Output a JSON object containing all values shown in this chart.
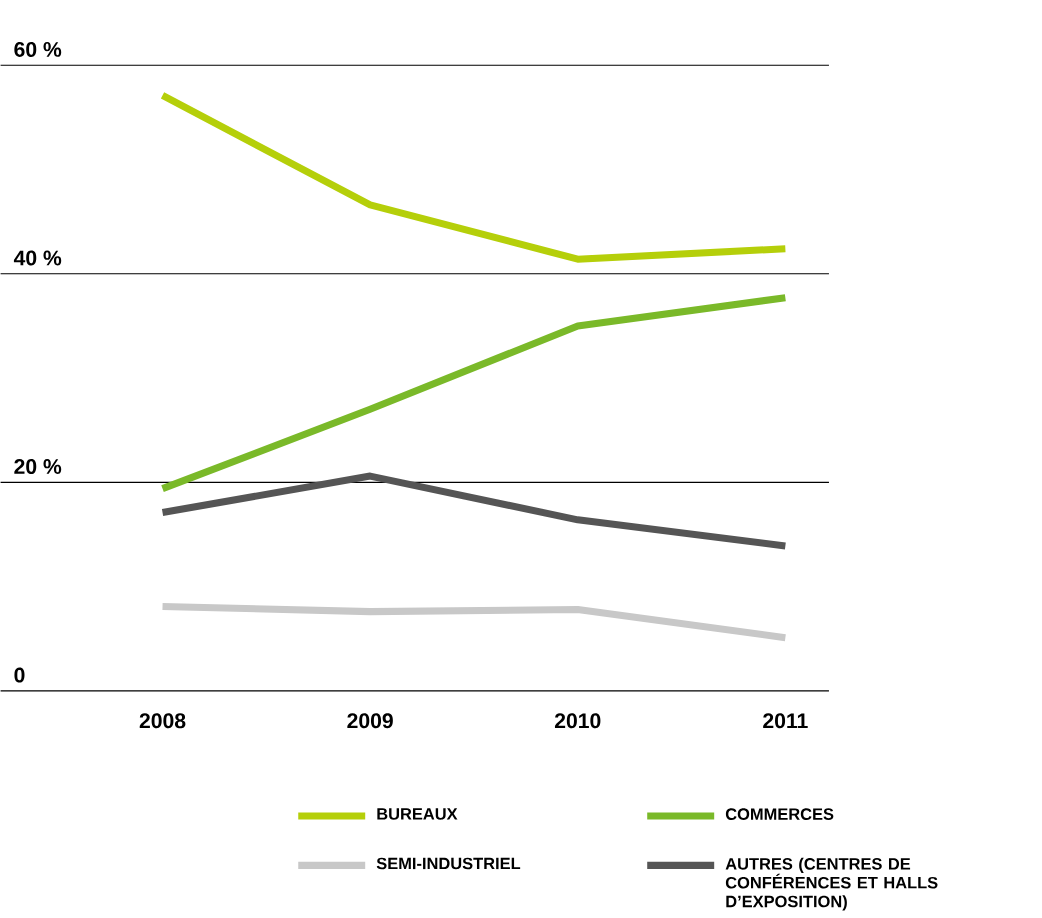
{
  "chart_data": {
    "type": "line",
    "categories": [
      "2008",
      "2009",
      "2010",
      "2011"
    ],
    "series": [
      {
        "name": "BUREAUX",
        "color": "#b5cf0a",
        "values": [
          57.1,
          46.6,
          41.4,
          42.4
        ]
      },
      {
        "name": "COMMERCES",
        "color": "#7ab929",
        "values": [
          19.4,
          27.0,
          35.0,
          37.7
        ]
      },
      {
        "name": "SEMI-INDUSTRIEL",
        "color": "#c8c8c8",
        "values": [
          8.1,
          7.6,
          7.8,
          5.1
        ]
      },
      {
        "name": "AUTRES (CENTRES DE CONFÉRENCES ET HALLS D’EXPOSITION)",
        "color": "#555555",
        "values": [
          17.1,
          20.6,
          16.4,
          13.9
        ]
      }
    ],
    "ylim": [
      0,
      60
    ],
    "yticks": [
      0,
      {
        "value": 20,
        "label": "20 %"
      },
      {
        "value": 40,
        "label": "40 %"
      },
      {
        "value": 60,
        "label": "60 %"
      }
    ],
    "grid": "y",
    "legend": "bottom",
    "marker": "none",
    "line_style": "solid"
  }
}
